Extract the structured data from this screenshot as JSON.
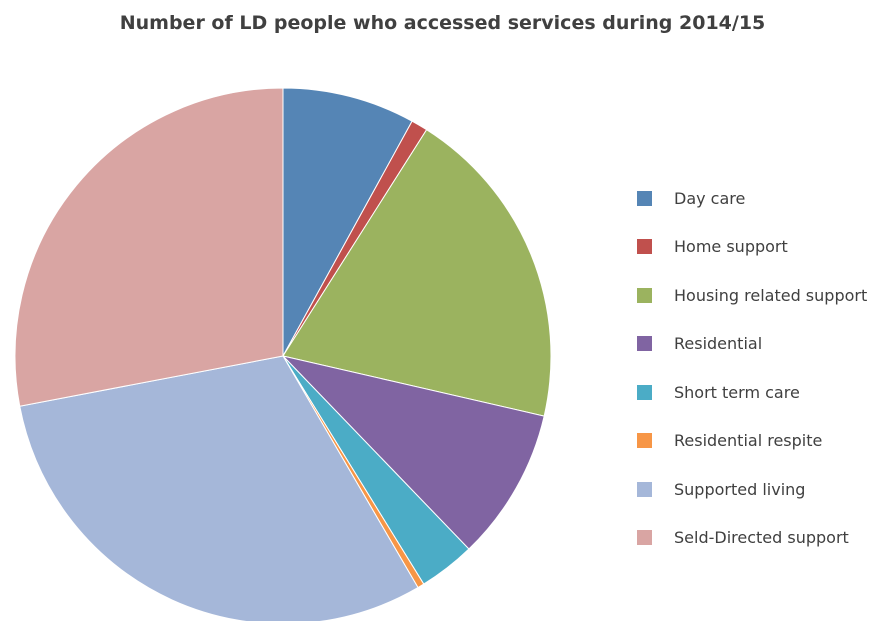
{
  "chart_data": {
    "type": "pie",
    "title": "Number of LD people who accessed services during 2014/15",
    "legend_position": "right",
    "start_angle_deg": 0,
    "direction": "clockwise",
    "slices": [
      {
        "label": "Day care",
        "value": 8.0,
        "color": "#5585b5"
      },
      {
        "label": "Home support",
        "value": 1.0,
        "color": "#c0504d"
      },
      {
        "label": "Housing related support",
        "value": 19.6,
        "color": "#9bb35f"
      },
      {
        "label": "Residential",
        "value": 9.2,
        "color": "#8064a2"
      },
      {
        "label": "Short term care",
        "value": 3.4,
        "color": "#4bacc6"
      },
      {
        "label": "Residential respite",
        "value": 0.4,
        "color": "#f79646"
      },
      {
        "label": "Supported living",
        "value": 30.4,
        "color": "#a5b7d9"
      },
      {
        "label": "Seld-Directed support",
        "value": 28.0,
        "color": "#d9a5a3"
      }
    ]
  }
}
